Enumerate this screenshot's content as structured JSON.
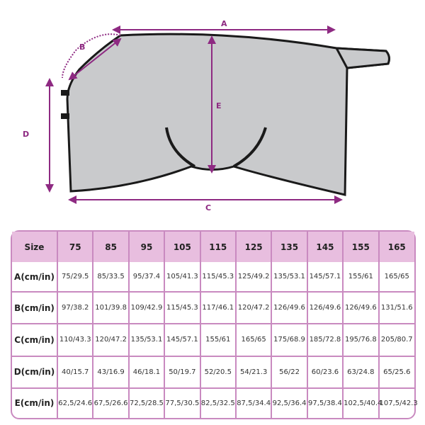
{
  "diagram": {
    "labels": {
      "a": "A",
      "b": "B",
      "c": "C",
      "d": "D",
      "e": "E"
    },
    "blanket_color": "#c9cacc",
    "trim_color": "#1a1a1a",
    "accent_color": "#8e2a82"
  },
  "size_table": {
    "header": [
      "Size",
      "75",
      "85",
      "95",
      "105",
      "115",
      "125",
      "135",
      "145",
      "155",
      "165"
    ],
    "rows": [
      {
        "label": "A(cm/in)",
        "values": [
          "75/29.5",
          "85/33.5",
          "95/37.4",
          "105/41.3",
          "115/45.3",
          "125/49.2",
          "135/53.1",
          "145/57.1",
          "155/61",
          "165/65"
        ]
      },
      {
        "label": "B(cm/in)",
        "values": [
          "97/38.2",
          "101/39.8",
          "109/42.9",
          "115/45.3",
          "117/46.1",
          "120/47.2",
          "126/49.6",
          "126/49.6",
          "126/49.6",
          "131/51.6"
        ]
      },
      {
        "label": "C(cm/in)",
        "values": [
          "110/43.3",
          "120/47.2",
          "135/53.1",
          "145/57.1",
          "155/61",
          "165/65",
          "175/68.9",
          "185/72.8",
          "195/76.8",
          "205/80.7"
        ]
      },
      {
        "label": "D(cm/in)",
        "values": [
          "40/15.7",
          "43/16.9",
          "46/18.1",
          "50/19.7",
          "52/20.5",
          "54/21.3",
          "56/22",
          "60/23.6",
          "63/24.8",
          "65/25.6"
        ]
      },
      {
        "label": "E(cm/in)",
        "values": [
          "62,5/24.6",
          "67,5/26.6",
          "72,5/28.5",
          "77,5/30.5",
          "82,5/32.5",
          "87,5/34.4",
          "92,5/36.4",
          "97,5/38.4",
          "102,5/40.4",
          "107,5/42.3"
        ]
      }
    ],
    "header_color": "#e8bedf",
    "border_color": "#c98ac0"
  }
}
